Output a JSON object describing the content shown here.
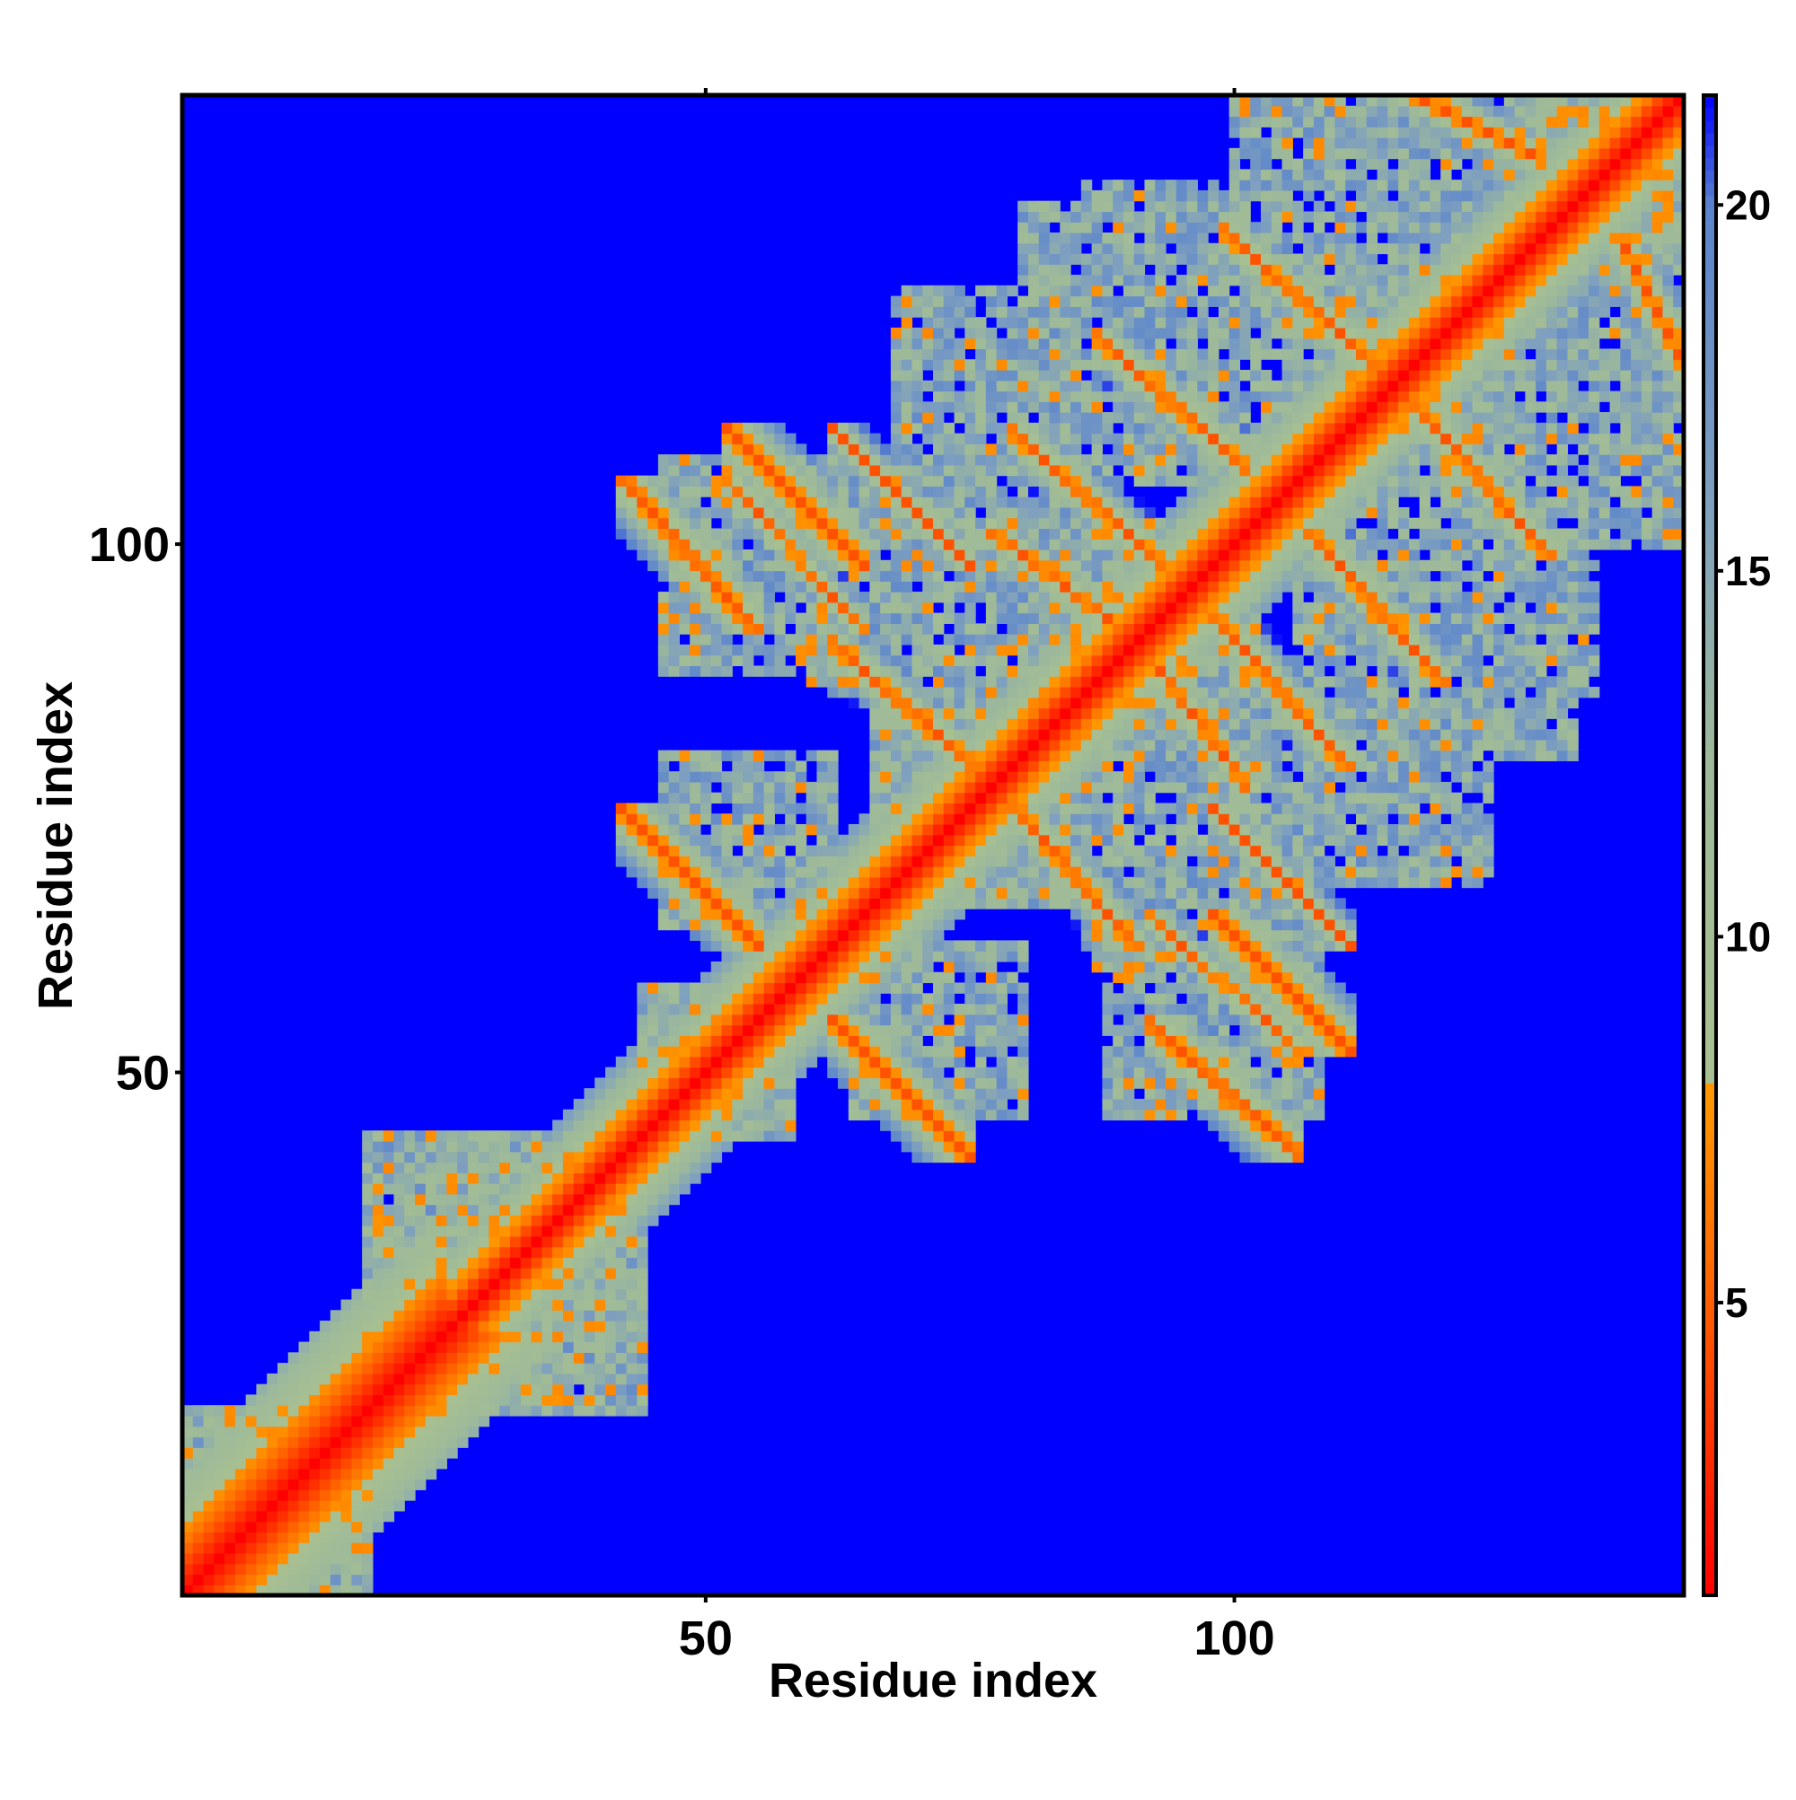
{
  "chart_data": {
    "type": "heatmap",
    "title": "",
    "xlabel": "Residue index",
    "ylabel": "Residue index",
    "x_range": [
      1,
      142
    ],
    "y_range": [
      1,
      142
    ],
    "x_ticks": [
      50,
      100
    ],
    "y_ticks": [
      50,
      100
    ],
    "colorbar": {
      "ticks": [
        5,
        10,
        15,
        20
      ],
      "range": [
        1,
        21.5
      ],
      "colors": {
        "low": "#ff0000",
        "mid_low": "#ff8c00",
        "mid": "#a9c08e",
        "high": "#5b86c9",
        "max": "#0000ff"
      },
      "stops": [
        {
          "value": 1,
          "color": "#ff0000"
        },
        {
          "value": 5.5,
          "color": "#ff6a00"
        },
        {
          "value": 8.0,
          "color": "#ff9a00"
        },
        {
          "value": 8.01,
          "color": "#a8c090"
        },
        {
          "value": 12.5,
          "color": "#9db99a"
        },
        {
          "value": 16.0,
          "color": "#7e9fbf"
        },
        {
          "value": 20.0,
          "color": "#5a84cc"
        },
        {
          "value": 21.5,
          "color": "#0000ff"
        }
      ]
    },
    "background_color": "#0000ff",
    "structure": {
      "diagonal": true,
      "contact_threshold": 20,
      "contact_segments": [
        {
          "a": [
            45,
            52
          ],
          "b": [
            95,
            103
          ],
          "orientation": "anti",
          "strength": 0.9
        },
        {
          "a": [
            45,
            52
          ],
          "b": [
            65,
            72
          ],
          "orientation": "anti",
          "strength": 0.9
        },
        {
          "a": [
            55,
            62
          ],
          "b": [
            101,
            108
          ],
          "orientation": "anti",
          "strength": 0.9
        },
        {
          "a": [
            55,
            62
          ],
          "b": [
            95,
            103
          ],
          "orientation": "anti",
          "strength": 0.5
        },
        {
          "a": [
            65,
            72
          ],
          "b": [
            101,
            108
          ],
          "orientation": "anti",
          "strength": 0.5
        },
        {
          "a": [
            82,
            90
          ],
          "b": [
            101,
            108
          ],
          "orientation": "anti",
          "strength": 0.6
        },
        {
          "a": [
            90,
            98
          ],
          "b": [
            110,
            117
          ],
          "orientation": "anti",
          "strength": 0.6
        },
        {
          "a": [
            102,
            110
          ],
          "b": [
            120,
            127
          ],
          "orientation": "anti",
          "strength": 0.6
        },
        {
          "a": [
            65,
            72
          ],
          "b": [
            82,
            88
          ],
          "orientation": "anti",
          "strength": 0.6
        },
        {
          "a": [
            80,
            88
          ],
          "b": [
            93,
            99
          ],
          "orientation": "anti",
          "strength": 0.5
        },
        {
          "a": [
            118,
            126
          ],
          "b": [
            138,
            142
          ],
          "orientation": "anti",
          "strength": 0.5
        }
      ],
      "contact_blobs": [
        {
          "x": [
            44,
            58
          ],
          "y": [
            44,
            58
          ]
        },
        {
          "x": [
            46,
            64
          ],
          "y": [
            88,
            108
          ]
        },
        {
          "x": [
            46,
            62
          ],
          "y": [
            64,
            80
          ]
        },
        {
          "x": [
            60,
            82
          ],
          "y": [
            86,
            106
          ]
        },
        {
          "x": [
            68,
            88
          ],
          "y": [
            98,
            124
          ]
        },
        {
          "x": [
            80,
            98
          ],
          "y": [
            112,
            132
          ]
        },
        {
          "x": [
            86,
            110
          ],
          "y": [
            106,
            134
          ]
        },
        {
          "x": [
            100,
            126
          ],
          "y": [
            110,
            138
          ]
        },
        {
          "x": [
            80,
            100
          ],
          "y": [
            80,
            102
          ]
        },
        {
          "x": [
            66,
            84
          ],
          "y": [
            66,
            88
          ]
        },
        {
          "x": [
            100,
            124
          ],
          "y": [
            118,
            142
          ]
        },
        {
          "x": [
            126,
            142
          ],
          "y": [
            126,
            142
          ]
        },
        {
          "x": [
            1,
            18
          ],
          "y": [
            1,
            18
          ]
        },
        {
          "x": [
            18,
            44
          ],
          "y": [
            18,
            44
          ]
        }
      ]
    },
    "grid": false,
    "legend": "colorbar-right"
  }
}
